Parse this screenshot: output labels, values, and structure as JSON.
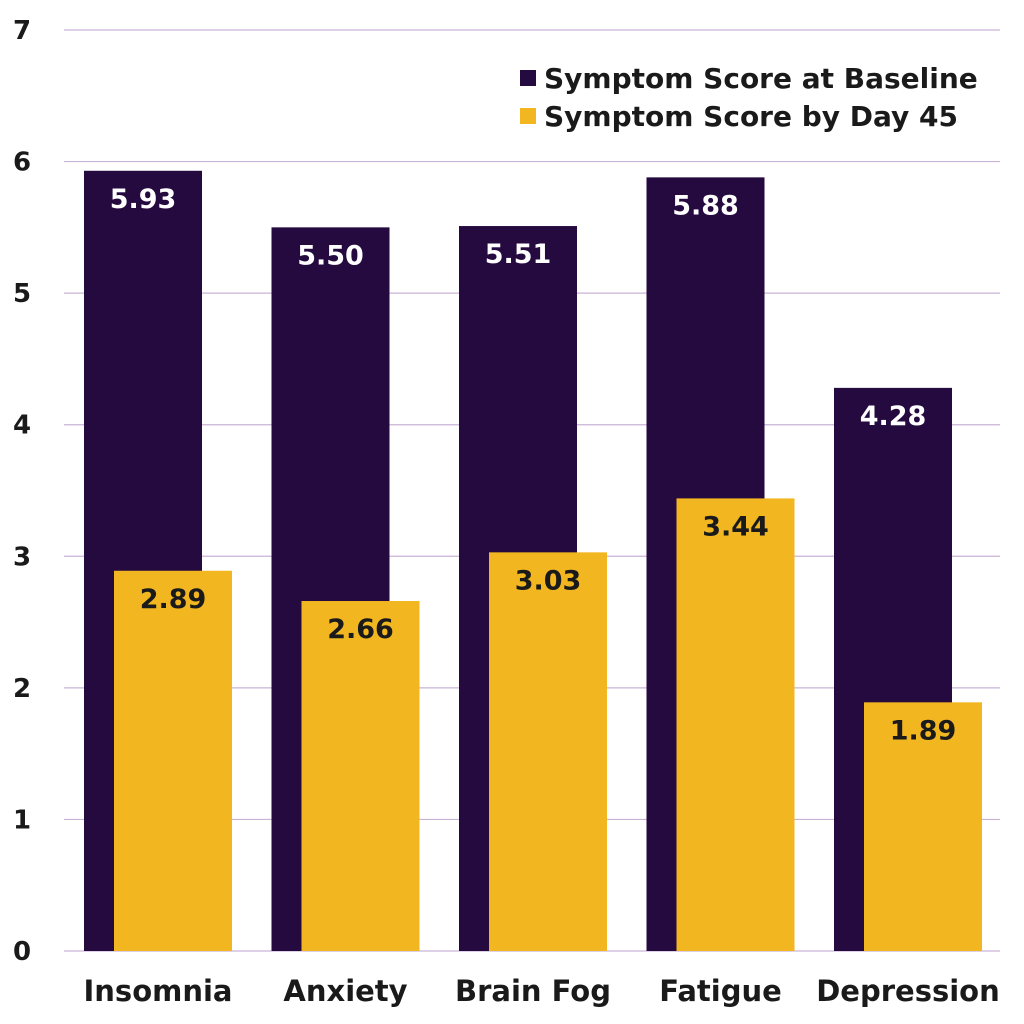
{
  "chart_data": {
    "type": "bar",
    "title": "",
    "xlabel": "",
    "ylabel": "",
    "ylim": [
      0,
      7
    ],
    "yticks": [
      0,
      1,
      2,
      3,
      4,
      5,
      6,
      7
    ],
    "grid": true,
    "legend_position": "top-right",
    "categories": [
      "Insomnia",
      "Anxiety",
      "Brain Fog",
      "Fatigue",
      "Depression"
    ],
    "series": [
      {
        "name": "Symptom Score at Baseline",
        "color": "#250a40",
        "label_color": "#ffffff",
        "values": [
          5.93,
          5.5,
          5.51,
          5.88,
          4.28
        ],
        "labels": [
          "5.93",
          "5.50",
          "5.51",
          "5.88",
          "4.28"
        ]
      },
      {
        "name": "Symptom Score by Day 45",
        "color": "#f2b720",
        "label_color": "#1a1a1a",
        "values": [
          2.89,
          2.66,
          3.03,
          3.44,
          1.89
        ],
        "labels": [
          "2.89",
          "2.66",
          "3.03",
          "3.44",
          "1.89"
        ]
      }
    ],
    "grid_color": "#c9b3d6"
  }
}
